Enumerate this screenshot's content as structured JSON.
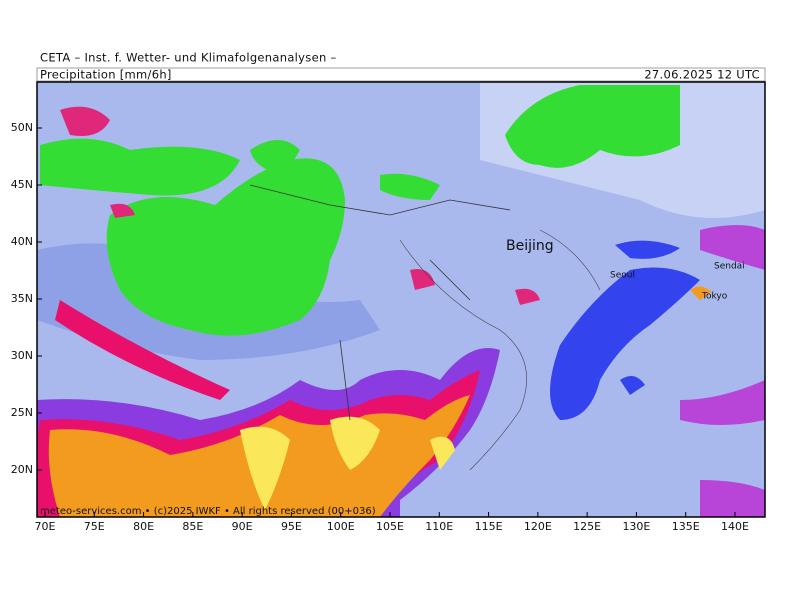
{
  "header": "CETA – Inst. f. Wetter- und Klimafolgenanalysen –",
  "title": "Precipitation [mm/6h]",
  "valid_time": "27.06.2025 12 UTC",
  "cities": [
    "Beijing",
    "Seoul",
    "Sendai",
    "Tokyo"
  ],
  "footer": "meteo-services.com • (c)2025 IWKF • All rights reserved (00+036)",
  "xticks": [
    {
      "value": 70,
      "label": "70E"
    },
    {
      "value": 75,
      "label": "75E"
    },
    {
      "value": 80,
      "label": "80E"
    },
    {
      "value": 85,
      "label": "85E"
    },
    {
      "value": 90,
      "label": "90E"
    },
    {
      "value": 95,
      "label": "95E"
    },
    {
      "value": 100,
      "label": "100E"
    },
    {
      "value": 105,
      "label": "105E"
    },
    {
      "value": 110,
      "label": "110E"
    },
    {
      "value": 115,
      "label": "115E"
    },
    {
      "value": 120,
      "label": "120E"
    },
    {
      "value": 125,
      "label": "125E"
    },
    {
      "value": 130,
      "label": "130E"
    },
    {
      "value": 135,
      "label": "135E"
    },
    {
      "value": 140,
      "label": "140E"
    }
  ],
  "yticks": [
    {
      "value": 20,
      "label": "20N"
    },
    {
      "value": 25,
      "label": "25N"
    },
    {
      "value": 30,
      "label": "30N"
    },
    {
      "value": 35,
      "label": "35N"
    },
    {
      "value": 40,
      "label": "40N"
    },
    {
      "value": 45,
      "label": "45N"
    },
    {
      "value": 50,
      "label": "50N"
    }
  ]
}
